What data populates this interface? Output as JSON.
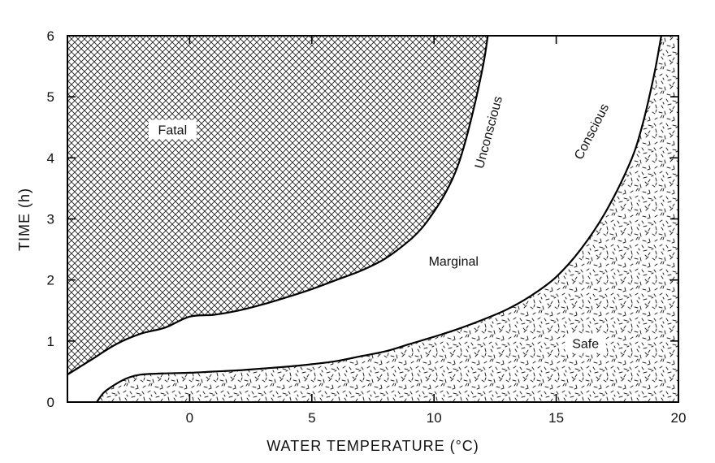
{
  "chart_data": {
    "type": "area",
    "title": "",
    "xlabel": "WATER TEMPERATURE (°C)",
    "ylabel": "TIME (h)",
    "xlim": [
      -5,
      20
    ],
    "ylim": [
      0,
      6
    ],
    "xticks": [
      0,
      5,
      10,
      15,
      20
    ],
    "yticks": [
      0,
      1,
      2,
      3,
      4,
      5,
      6
    ],
    "grid": false,
    "series": [
      {
        "name": "Fatal/Marginal boundary (Unconscious)",
        "x": [
          -5,
          -4,
          -3,
          -2,
          -1,
          0,
          1,
          2,
          3,
          4,
          5,
          6,
          7,
          8,
          9,
          9.5,
          10,
          10.5,
          11,
          11.5,
          12,
          12.2
        ],
        "y": [
          0.45,
          0.7,
          0.95,
          1.12,
          1.22,
          1.4,
          1.43,
          1.5,
          1.6,
          1.72,
          1.85,
          2.0,
          2.15,
          2.35,
          2.65,
          2.85,
          3.12,
          3.45,
          3.9,
          4.6,
          5.5,
          6.0
        ]
      },
      {
        "name": "Marginal/Safe boundary (Conscious)",
        "x": [
          -3.8,
          -3.5,
          -3,
          -2.5,
          -2,
          -1,
          0,
          1,
          2,
          3,
          4,
          5,
          6,
          7,
          8,
          9,
          10,
          11,
          12,
          13,
          14,
          15,
          16,
          17,
          18,
          18.5,
          19,
          19.3
        ],
        "y": [
          0.0,
          0.16,
          0.3,
          0.4,
          0.45,
          0.47,
          0.48,
          0.5,
          0.52,
          0.55,
          0.58,
          0.62,
          0.67,
          0.75,
          0.83,
          0.95,
          1.07,
          1.2,
          1.35,
          1.52,
          1.75,
          2.05,
          2.5,
          3.1,
          3.9,
          4.5,
          5.35,
          6.0
        ]
      }
    ],
    "regions": [
      {
        "name": "Fatal",
        "x": -0.7,
        "y": 4.45
      },
      {
        "name": "Marginal",
        "x": 10.8,
        "y": 2.3
      },
      {
        "name": "Safe",
        "x": 16.2,
        "y": 0.95
      }
    ],
    "annotations": [
      {
        "text": "Unconscious",
        "x": 12.4,
        "y": 4.4,
        "angle": -75
      },
      {
        "text": "Conscious",
        "x": 16.6,
        "y": 4.4,
        "angle": -63
      }
    ]
  }
}
